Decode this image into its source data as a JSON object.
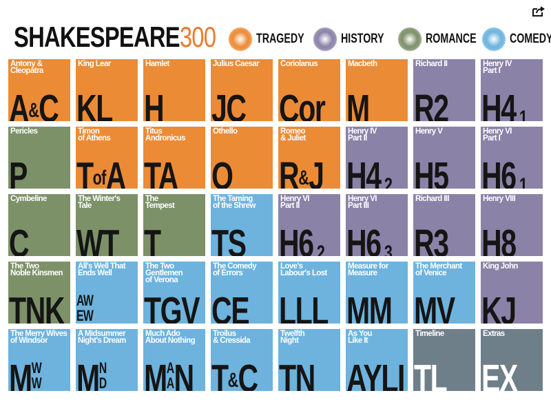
{
  "header": {
    "logo_text": "SHAKESPEARE",
    "logo_number": "300",
    "share_icon": "share-icon"
  },
  "legend": [
    {
      "label": "TRAGEDY",
      "color": "#ec8b35"
    },
    {
      "label": "HISTORY",
      "color": "#8b82a8"
    },
    {
      "label": "ROMANCE",
      "color": "#7d9169"
    },
    {
      "label": "COMEDY",
      "color": "#6db3de"
    }
  ],
  "colors": {
    "tragedy": "#ec8b35",
    "history": "#8b82a8",
    "romance": "#7d9169",
    "comedy": "#6db3de",
    "other": "#6f7f89"
  },
  "tiles": [
    {
      "title": "Antony &\nCleopatra",
      "genre": "tragedy",
      "abbr": [
        {
          "t": "A"
        },
        {
          "t": "&",
          "k": "s"
        },
        {
          "t": "C"
        }
      ]
    },
    {
      "title": "King Lear",
      "genre": "tragedy",
      "abbr": [
        {
          "t": "KL"
        }
      ]
    },
    {
      "title": "Hamlet",
      "genre": "tragedy",
      "abbr": [
        {
          "t": "H"
        }
      ]
    },
    {
      "title": "Julius Caesar",
      "genre": "tragedy",
      "abbr": [
        {
          "t": "JC"
        }
      ]
    },
    {
      "title": "Coriolanus",
      "genre": "tragedy",
      "abbr": [
        {
          "t": "Cor"
        }
      ]
    },
    {
      "title": "Macbeth",
      "genre": "tragedy",
      "abbr": [
        {
          "t": "M"
        }
      ]
    },
    {
      "title": "Richard II",
      "genre": "history",
      "abbr": [
        {
          "t": "R2"
        }
      ]
    },
    {
      "title": "Henry IV\nPart I",
      "genre": "history",
      "abbr": [
        {
          "t": "H4"
        },
        {
          "t": ".1",
          "k": "sub"
        }
      ]
    },
    {
      "title": "Pericles",
      "genre": "romance",
      "abbr": [
        {
          "t": "P"
        }
      ]
    },
    {
      "title": "Timon\nof Athens",
      "genre": "tragedy",
      "abbr": [
        {
          "t": "T"
        },
        {
          "t": "of",
          "k": "s"
        },
        {
          "t": "A"
        }
      ]
    },
    {
      "title": "Titus\nAndronicus",
      "genre": "tragedy",
      "abbr": [
        {
          "t": "TA"
        }
      ]
    },
    {
      "title": "Othello",
      "genre": "tragedy",
      "abbr": [
        {
          "t": "O"
        }
      ]
    },
    {
      "title": "Romeo\n& Juliet",
      "genre": "tragedy",
      "abbr": [
        {
          "t": "R"
        },
        {
          "t": "&",
          "k": "s"
        },
        {
          "t": "J"
        }
      ]
    },
    {
      "title": "Henry IV\nPart II",
      "genre": "history",
      "abbr": [
        {
          "t": "H4"
        },
        {
          "t": ".2",
          "k": "sub"
        }
      ]
    },
    {
      "title": "Henry V",
      "genre": "history",
      "abbr": [
        {
          "t": "H5"
        }
      ]
    },
    {
      "title": "Henry VI\nPart I",
      "genre": "history",
      "abbr": [
        {
          "t": "H6"
        },
        {
          "t": ".1",
          "k": "sub"
        }
      ]
    },
    {
      "title": "Cymbeline",
      "genre": "romance",
      "abbr": [
        {
          "t": "C"
        }
      ]
    },
    {
      "title": "The Winter's\nTale",
      "genre": "romance",
      "abbr": [
        {
          "t": "WT"
        }
      ]
    },
    {
      "title": "The\nTempest",
      "genre": "romance",
      "abbr": [
        {
          "t": "T"
        }
      ]
    },
    {
      "title": "The Taming\nof the Shrew",
      "genre": "comedy",
      "abbr": [
        {
          "t": "TS"
        }
      ]
    },
    {
      "title": "Henry VI\nPart II",
      "genre": "history",
      "abbr": [
        {
          "t": "H6"
        },
        {
          "t": ".2",
          "k": "sub"
        }
      ]
    },
    {
      "title": "Henry VI\nPart III",
      "genre": "history",
      "abbr": [
        {
          "t": "H6"
        },
        {
          "t": ".3",
          "k": "sub"
        }
      ]
    },
    {
      "title": "Richard III",
      "genre": "history",
      "abbr": [
        {
          "t": "R3"
        }
      ]
    },
    {
      "title": "Henry VIII",
      "genre": "history",
      "abbr": [
        {
          "t": "H8"
        }
      ]
    },
    {
      "title": "The Two\nNoble Kinsmen",
      "genre": "romance",
      "abbr": [
        {
          "t": "TNK"
        }
      ]
    },
    {
      "title": "All's Well That\nEnds Well",
      "genre": "comedy",
      "abbr": [
        {
          "t": "AW|EW",
          "k": "stack"
        }
      ]
    },
    {
      "title": "The Two\nGentlemen\nof Verona",
      "genre": "comedy",
      "abbr": [
        {
          "t": "TGV"
        }
      ]
    },
    {
      "title": "The Comedy\nof Errors",
      "genre": "comedy",
      "abbr": [
        {
          "t": "CE"
        }
      ]
    },
    {
      "title": "Love's\nLabour's Lost",
      "genre": "comedy",
      "abbr": [
        {
          "t": "LLL"
        }
      ]
    },
    {
      "title": "Measure for\nMeasure",
      "genre": "comedy",
      "abbr": [
        {
          "t": "MM"
        }
      ]
    },
    {
      "title": "The Merchant\nof Venice",
      "genre": "comedy",
      "abbr": [
        {
          "t": "MV"
        }
      ]
    },
    {
      "title": "King John",
      "genre": "history",
      "abbr": [
        {
          "t": "KJ"
        }
      ]
    },
    {
      "title": "The Merry Wives\nof Windsor",
      "genre": "comedy",
      "abbr": [
        {
          "t": "M"
        },
        {
          "t": "W|W",
          "k": "stack"
        }
      ]
    },
    {
      "title": "A Midsummer\nNight's Dream",
      "genre": "comedy",
      "abbr": [
        {
          "t": "M"
        },
        {
          "t": "N|D",
          "k": "stack"
        }
      ]
    },
    {
      "title": "Much Ado\nAbout Nothing",
      "genre": "comedy",
      "abbr": [
        {
          "t": "M"
        },
        {
          "t": "A|A",
          "k": "stack"
        },
        {
          "t": "N"
        }
      ]
    },
    {
      "title": "Troilus\n& Cressida",
      "genre": "comedy",
      "abbr": [
        {
          "t": "T"
        },
        {
          "t": "&",
          "k": "s"
        },
        {
          "t": "C"
        }
      ]
    },
    {
      "title": "Twelfth\nNight",
      "genre": "comedy",
      "abbr": [
        {
          "t": "TN"
        }
      ]
    },
    {
      "title": "As You\nLike It",
      "genre": "comedy",
      "abbr": [
        {
          "t": "AYLI"
        }
      ]
    },
    {
      "title": "Timeline",
      "genre": "other",
      "light": true,
      "abbr": [
        {
          "t": "TL"
        }
      ]
    },
    {
      "title": "Extras",
      "genre": "other",
      "light": true,
      "abbr": [
        {
          "t": "EX"
        }
      ]
    }
  ]
}
